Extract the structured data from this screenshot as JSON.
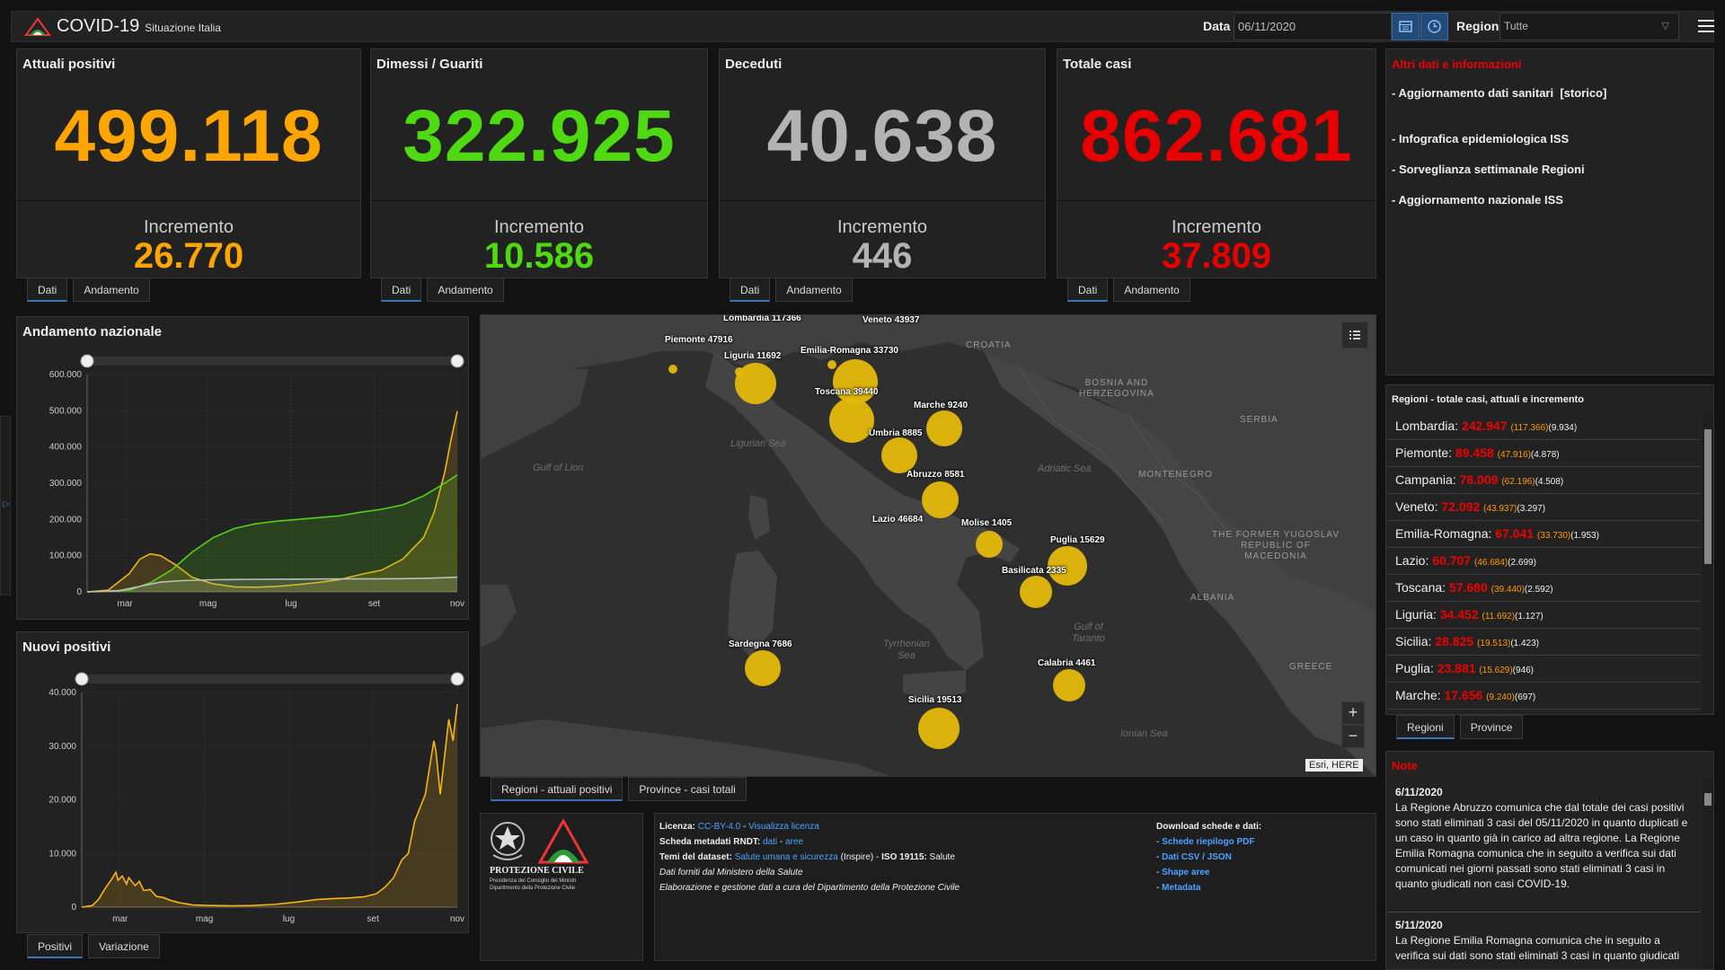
{
  "app": {
    "title": "COVID-19",
    "subtitle": "Situazione Italia",
    "date_label": "Data",
    "date_value": "06/11/2020",
    "region_label": "Regione",
    "region_value": "Tutte",
    "calendar_icon": "calendar-icon",
    "clock_icon": "clock-icon",
    "menu_icon": "hamburger-icon"
  },
  "stats": [
    {
      "title": "Attuali positivi",
      "value": "499.118",
      "inc_label": "Incremento",
      "inc": "26.770",
      "color": "#ffa500",
      "tabs": [
        "Dati",
        "Andamento"
      ]
    },
    {
      "title": "Dimessi / Guariti",
      "value": "322.925",
      "inc_label": "Incremento",
      "inc": "10.586",
      "color": "#4ed913",
      "tabs": [
        "Dati",
        "Andamento"
      ]
    },
    {
      "title": "Deceduti",
      "value": "40.638",
      "inc_label": "Incremento",
      "inc": "446",
      "color": "#b3b3b3",
      "tabs": [
        "Dati",
        "Andamento"
      ]
    },
    {
      "title": "Totale casi",
      "value": "862.681",
      "inc_label": "Incremento",
      "inc": "37.809",
      "color": "#e60000",
      "tabs": [
        "Dati",
        "Andamento"
      ]
    }
  ],
  "info": {
    "title": "Altri dati e informazioni",
    "links": [
      "- Aggiornamento dati sanitari  [storico]",
      "- Infografica epidemiologica ISS",
      "- Sorveglianza settimanale Regioni",
      "- Aggiornamento nazionale ISS"
    ]
  },
  "regions": {
    "title": "Regioni - totale casi, attuali e incremento",
    "rows": [
      {
        "name": "Lombardia:",
        "total": "242.947",
        "attuali": "(117.366)",
        "inc": "(9.934)"
      },
      {
        "name": "Piemonte:",
        "total": "89.458",
        "attuali": "(47.916)",
        "inc": "(4.878)"
      },
      {
        "name": "Campania:",
        "total": "78.009",
        "attuali": "(62.196)",
        "inc": "(4.508)"
      },
      {
        "name": "Veneto:",
        "total": "72.092",
        "attuali": "(43.937)",
        "inc": "(3.297)"
      },
      {
        "name": "Emilia-Romagna:",
        "total": "67.041",
        "attuali": "(33.730)",
        "inc": "(1.953)"
      },
      {
        "name": "Lazio:",
        "total": "60.707",
        "attuali": "(46.684)",
        "inc": "(2.699)"
      },
      {
        "name": "Toscana:",
        "total": "57.680",
        "attuali": "(39.440)",
        "inc": "(2.592)"
      },
      {
        "name": "Liguria:",
        "total": "34.452",
        "attuali": "(11.692)",
        "inc": "(1.127)"
      },
      {
        "name": "Sicilia:",
        "total": "28.825",
        "attuali": "(19.513)",
        "inc": "(1.423)"
      },
      {
        "name": "Puglia:",
        "total": "23.881",
        "attuali": "(15.629)",
        "inc": "(946)"
      },
      {
        "name": "Marche:",
        "total": "17.656",
        "attuali": "(9.240)",
        "inc": "(697)"
      }
    ],
    "tabs": [
      "Regioni",
      "Province"
    ]
  },
  "notes": {
    "title": "Note",
    "items": [
      {
        "date": "6/11/2020",
        "text": "La Regione Abruzzo comunica che dal totale dei casi positivi sono stati eliminati 3 casi del 05/11/2020 in quanto duplicati e un caso in quanto già in carico ad altra regione. La Regione Emilia Romagna comunica che in seguito a verifica sui dati comunicati nei giorni passati sono stati eliminati 3 casi in quanto giudicati non casi COVID-19."
      },
      {
        "date": "5/11/2020",
        "text": "La Regione Emilia Romagna comunica che in seguito a verifica sui dati sono stati eliminati 3 casi in quanto giudicati"
      }
    ]
  },
  "chart1": {
    "title": "Andamento nazionale",
    "tabs": []
  },
  "chart2": {
    "title": "Nuovi positivi",
    "tabs": [
      "Positivi",
      "Variazione"
    ]
  },
  "map": {
    "tabs": [
      "Regioni - attuali positivi",
      "Province - casi totali"
    ],
    "attribution": "Esri, HERE",
    "list_icon": "list-icon",
    "zoom_in": "+",
    "zoom_out": "−",
    "points": [
      {
        "label": "Lombardia 117366",
        "value": 117366
      },
      {
        "label": "Veneto 43937",
        "value": 43937
      },
      {
        "label": "Piemonte 47916",
        "value": 47916
      },
      {
        "label": "Liguria 11692",
        "value": 11692
      },
      {
        "label": "Emilia-Romagna 33730",
        "value": 33730
      },
      {
        "label": "Toscana 39440",
        "value": 39440
      },
      {
        "label": "Marche 9240",
        "value": 9240
      },
      {
        "label": "Umbria 8885",
        "value": 8885
      },
      {
        "label": "Abruzzo 8581",
        "value": 8581
      },
      {
        "label": "Lazio 46684",
        "value": 46684
      },
      {
        "label": "Molise 1405",
        "value": 1405
      },
      {
        "label": "Puglia 15629",
        "value": 15629
      },
      {
        "label": "Basilicata 2335",
        "value": 2335
      },
      {
        "label": "Sardegna 7686",
        "value": 7686
      },
      {
        "label": "Calabria 4461",
        "value": 4461
      },
      {
        "label": "Sicilia 19513",
        "value": 19513
      }
    ],
    "geo": [
      "CROATIA",
      "BOSNIA AND\nHERZEGOVINA",
      "SERBIA",
      "MONTENEGRO",
      "THE FORMER YUGOSLAV\nREPUBLIC OF\nMACEDONIA",
      "ALBANIA",
      "GREECE"
    ],
    "seas": [
      "Gulf of Lion",
      "Ligurian Sea",
      "Adriatic Sea",
      "Tyrrhenian\nSea",
      "Gulf of\nTaranto",
      "Ionian Sea"
    ]
  },
  "footer": {
    "org": "PROTEZIONE CIVILE",
    "org_sub": "Presidenza del Consiglio dei Ministri\nDipartimento della Protezione Civile",
    "licenza_k": "Licenza:",
    "licenza_v": "CC-BY-4.0",
    "licenza_sep": " - ",
    "licenza_link": "Visualizza licenza",
    "metadati_k": "Scheda metadati RNDT:",
    "metadati_a": "dati",
    "metadati_sep": " - ",
    "metadati_b": "aree",
    "temi_k": "Temi del dataset:",
    "temi_link": "Salute umana e sicurezza",
    "temi_rest": " (Inspire) - ",
    "iso_k": "ISO 19115:",
    "iso_v": " Salute",
    "line4": "Dati forniti dal Ministero della Salute",
    "line5": "Elaborazione e gestione dati a cura del Dipartimento della Protezione Civile",
    "dl_title": "Download schede e dati:",
    "dl_links": [
      "Schede riepilogo PDF",
      "Dati CSV / JSON",
      "Shape aree",
      "Metadata"
    ]
  },
  "chart_data": [
    {
      "type": "area",
      "title": "Andamento nazionale",
      "x_ticks": [
        "mar",
        "mag",
        "lug",
        "set",
        "nov"
      ],
      "ylim": [
        0,
        600000
      ],
      "y_ticks": [
        "0",
        "100.000",
        "200.000",
        "300.000",
        "400.000",
        "500.000",
        "600.000"
      ],
      "series": [
        {
          "color": "#f5b316",
          "values": [
            [
              0,
              0
            ],
            [
              10,
              5000
            ],
            [
              20,
              50000
            ],
            [
              25,
              90000
            ],
            [
              30,
              105000
            ],
            [
              35,
              100000
            ],
            [
              42,
              75000
            ],
            [
              50,
              40000
            ],
            [
              60,
              22000
            ],
            [
              70,
              14000
            ],
            [
              80,
              13000
            ],
            [
              90,
              15000
            ],
            [
              100,
              20000
            ],
            [
              110,
              26000
            ],
            [
              120,
              34000
            ],
            [
              130,
              48000
            ],
            [
              140,
              60000
            ],
            [
              150,
              90000
            ],
            [
              160,
              150000
            ],
            [
              165,
              220000
            ],
            [
              170,
              330000
            ],
            [
              173,
              420000
            ],
            [
              176,
              499118
            ]
          ]
        },
        {
          "color": "#53d018",
          "values": [
            [
              0,
              0
            ],
            [
              20,
              5000
            ],
            [
              30,
              25000
            ],
            [
              40,
              60000
            ],
            [
              50,
              110000
            ],
            [
              60,
              150000
            ],
            [
              70,
              175000
            ],
            [
              80,
              188000
            ],
            [
              90,
              195000
            ],
            [
              100,
              200000
            ],
            [
              110,
              205000
            ],
            [
              120,
              210000
            ],
            [
              130,
              220000
            ],
            [
              140,
              228000
            ],
            [
              150,
              240000
            ],
            [
              160,
              265000
            ],
            [
              170,
              300000
            ],
            [
              176,
              322925
            ]
          ]
        },
        {
          "color": "#bdbdbd",
          "values": [
            [
              0,
              0
            ],
            [
              15,
              3000
            ],
            [
              25,
              15000
            ],
            [
              35,
              27000
            ],
            [
              45,
              31000
            ],
            [
              60,
              33500
            ],
            [
              80,
              34800
            ],
            [
              100,
              35300
            ],
            [
              120,
              35700
            ],
            [
              140,
              36100
            ],
            [
              150,
              36500
            ],
            [
              160,
              37500
            ],
            [
              170,
              39200
            ],
            [
              176,
              40638
            ]
          ]
        }
      ]
    },
    {
      "type": "area",
      "title": "Nuovi positivi",
      "x_ticks": [
        "mar",
        "mag",
        "lug",
        "set",
        "nov"
      ],
      "ylim": [
        0,
        40000
      ],
      "y_ticks": [
        "0",
        "10.000",
        "20.000",
        "30.000",
        "40.000"
      ],
      "series": [
        {
          "color": "#f5b316",
          "values": [
            [
              0,
              0
            ],
            [
              5,
              300
            ],
            [
              8,
              1500
            ],
            [
              11,
              3500
            ],
            [
              14,
              5200
            ],
            [
              16,
              6500
            ],
            [
              17,
              5000
            ],
            [
              19,
              5800
            ],
            [
              21,
              4300
            ],
            [
              22,
              5500
            ],
            [
              25,
              4000
            ],
            [
              27,
              4800
            ],
            [
              29,
              3100
            ],
            [
              32,
              3300
            ],
            [
              35,
              2000
            ],
            [
              38,
              1800
            ],
            [
              42,
              1200
            ],
            [
              46,
              800
            ],
            [
              52,
              400
            ],
            [
              60,
              300
            ],
            [
              70,
              250
            ],
            [
              80,
              300
            ],
            [
              90,
              500
            ],
            [
              100,
              900
            ],
            [
              110,
              1400
            ],
            [
              118,
              1600
            ],
            [
              125,
              1700
            ],
            [
              132,
              1900
            ],
            [
              138,
              2500
            ],
            [
              142,
              3700
            ],
            [
              146,
              5400
            ],
            [
              150,
              8800
            ],
            [
              153,
              10000
            ],
            [
              156,
              16000
            ],
            [
              159,
              19000
            ],
            [
              161,
              21000
            ],
            [
              163,
              26000
            ],
            [
              165,
              31000
            ],
            [
              166,
              29000
            ],
            [
              168,
              21000
            ],
            [
              170,
              28000
            ],
            [
              172,
              35000
            ],
            [
              174,
              31000
            ],
            [
              175,
              34500
            ],
            [
              176,
              37809
            ]
          ]
        }
      ]
    }
  ]
}
